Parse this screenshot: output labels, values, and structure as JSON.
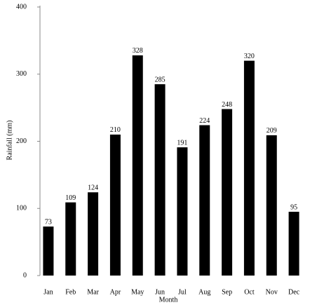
{
  "chart_data": {
    "type": "bar",
    "x_label": "Month",
    "y_label": "Rainfall (mm)",
    "categories": [
      "Jan",
      "Feb",
      "Mar",
      "Apr",
      "May",
      "Jun",
      "Jul",
      "Aug",
      "Sep",
      "Oct",
      "Nov",
      "Dec"
    ],
    "values": [
      73,
      109,
      124,
      210,
      328,
      285,
      191,
      224,
      248,
      320,
      209,
      95
    ],
    "color": "#000000",
    "ylim": [
      0,
      400
    ],
    "yticks": [
      0,
      100,
      200,
      300,
      400
    ],
    "grid": false
  }
}
